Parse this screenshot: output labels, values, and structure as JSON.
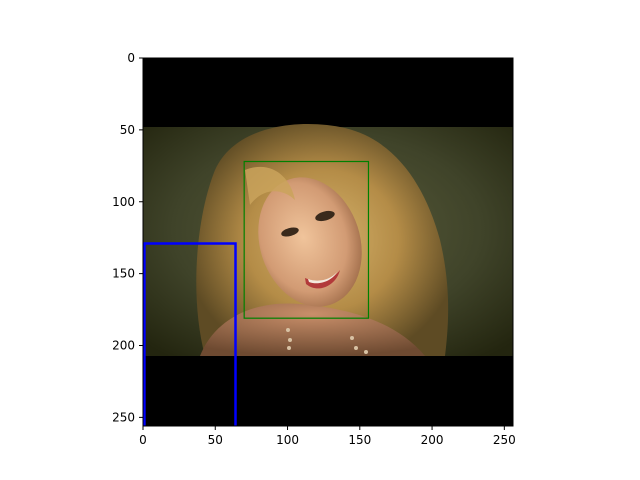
{
  "image": {
    "subject": "photo",
    "background_color": "#000000"
  },
  "axes": {
    "x_ticks": [
      "0",
      "50",
      "100",
      "150",
      "200",
      "250"
    ],
    "y_ticks": [
      "0",
      "50",
      "100",
      "150",
      "200",
      "250"
    ],
    "xlim": [
      0,
      256
    ],
    "ylim_inverted": [
      0,
      256
    ]
  },
  "annotations": [
    {
      "kind": "rectangle",
      "color": "#008000",
      "x0": 70,
      "y0": 72,
      "x1": 156,
      "y1": 181
    },
    {
      "kind": "rectangle",
      "color": "#0000ff",
      "x0": 1,
      "y0": 129,
      "x1": 64,
      "y1": 256,
      "open_bottom": true
    }
  ]
}
